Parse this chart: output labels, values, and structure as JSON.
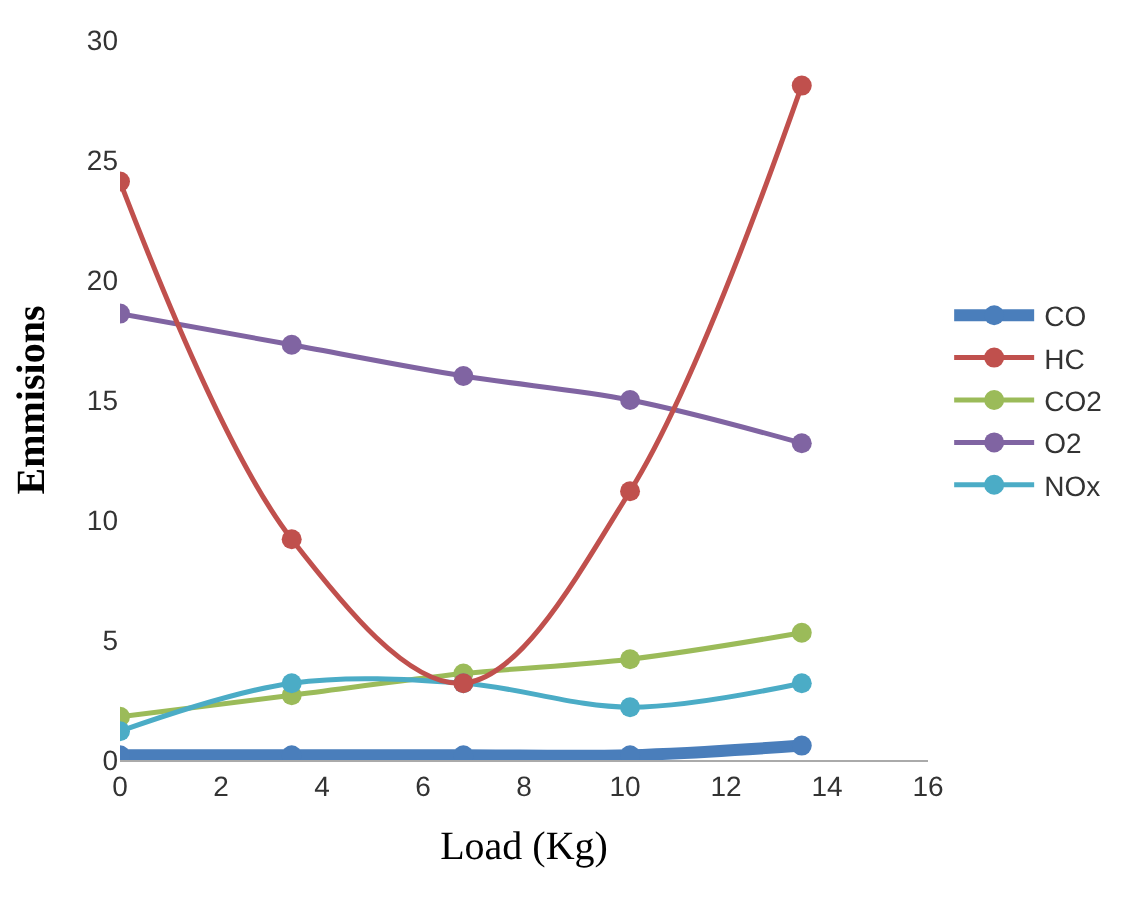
{
  "chart_data": {
    "type": "line",
    "xlabel": "Load (Kg)",
    "ylabel": "Emmisions",
    "x": [
      0,
      3.4,
      6.8,
      10.1,
      13.5
    ],
    "series": [
      {
        "name": "CO",
        "color": "#4a7ebb",
        "values": [
          0.2,
          0.2,
          0.2,
          0.2,
          0.6
        ]
      },
      {
        "name": "HC",
        "color": "#c0504d",
        "values": [
          24.1,
          9.2,
          3.2,
          11.2,
          28.1
        ]
      },
      {
        "name": "CO2",
        "color": "#9bbb59",
        "values": [
          1.8,
          2.7,
          3.6,
          4.2,
          5.3
        ]
      },
      {
        "name": "O2",
        "color": "#8064a2",
        "values": [
          18.6,
          17.3,
          16.0,
          15.0,
          13.2
        ]
      },
      {
        "name": "NOx",
        "color": "#4bacc6",
        "values": [
          1.2,
          3.2,
          3.2,
          2.2,
          3.2
        ]
      }
    ],
    "xlim": [
      0,
      16
    ],
    "xticks": [
      0,
      2,
      4,
      6,
      8,
      10,
      12,
      14,
      16
    ],
    "ylim": [
      0,
      30
    ],
    "yticks": [
      0,
      5,
      10,
      15,
      20,
      25,
      30
    ],
    "grid": false,
    "legend": "right",
    "marker": "circle",
    "line_style": "solid"
  }
}
